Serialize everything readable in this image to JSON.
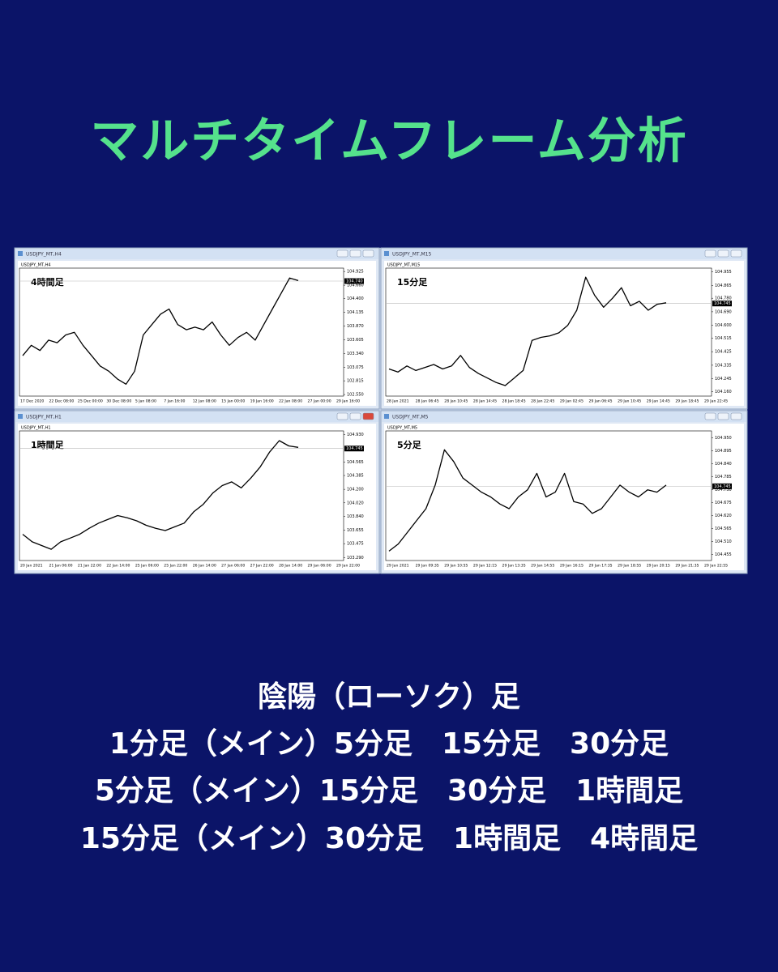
{
  "header": {
    "title": "マルチタイムフレーム分析"
  },
  "windows": [
    {
      "window_title": "USDJPY_MT,H4",
      "chart_data": {
        "type": "line",
        "symbol_label": "USDJPY_MT,H4",
        "annotation": "4時間足",
        "values": [
          103.3,
          103.5,
          103.4,
          103.6,
          103.55,
          103.7,
          103.75,
          103.5,
          103.3,
          103.1,
          103.0,
          102.85,
          102.75,
          103.0,
          103.7,
          103.9,
          104.1,
          104.2,
          103.9,
          103.8,
          103.85,
          103.8,
          103.95,
          103.7,
          103.5,
          103.65,
          103.75,
          103.6,
          103.9,
          104.2,
          104.5,
          104.8,
          104.75
        ],
        "ylim": [
          102.52,
          104.99
        ],
        "yticks": [
          104.925,
          {
            "value": 104.66,
            "label": "104.660"
          },
          {
            "value": 104.4,
            "label": "104.400"
          },
          104.135,
          {
            "value": 103.87,
            "label": "103.870"
          },
          103.605,
          {
            "value": 103.34,
            "label": "103.340"
          },
          103.075,
          102.815,
          {
            "value": 102.55,
            "label": "102.550"
          }
        ],
        "current_price": {
          "value": 104.74,
          "label": "104.740"
        },
        "x_labels": [
          "17 Dec 2020",
          "22 Dec 08:00",
          "25 Dec 00:00",
          "30 Dec 08:00",
          "5 Jan 08:00",
          "7 Jan 16:00",
          "12 Jan 08:00",
          "15 Jan 00:00",
          "19 Jan 16:00",
          "22 Jan 08:00",
          "27 Jan 00:00",
          "29 Jan 16:00"
        ]
      }
    },
    {
      "window_title": "USDJPY_MT,M15",
      "chart_data": {
        "type": "line",
        "symbol_label": "USDJPY_MT,M15",
        "annotation": "15分足",
        "values": [
          104.31,
          104.29,
          104.33,
          104.3,
          104.32,
          104.34,
          104.31,
          104.33,
          104.4,
          104.32,
          104.28,
          104.25,
          104.22,
          104.2,
          104.25,
          104.3,
          104.5,
          104.52,
          104.53,
          104.55,
          104.6,
          104.7,
          104.92,
          104.8,
          104.72,
          104.78,
          104.85,
          104.73,
          104.76,
          104.7,
          104.74,
          104.75
        ],
        "ylim": [
          104.13,
          104.98
        ],
        "yticks": [
          104.955,
          104.865,
          {
            "value": 104.78,
            "label": "104.780"
          },
          {
            "value": 104.69,
            "label": "104.690"
          },
          {
            "value": 104.6,
            "label": "104.600"
          },
          104.515,
          104.425,
          104.335,
          104.245,
          {
            "value": 104.16,
            "label": "104.160"
          }
        ],
        "current_price": 104.745,
        "x_labels": [
          "28 Jan 2021",
          "28 Jan 06:45",
          "28 Jan 10:45",
          "28 Jan 14:45",
          "28 Jan 18:45",
          "28 Jan 22:45",
          "29 Jan 02:45",
          "29 Jan 06:45",
          "29 Jan 10:45",
          "29 Jan 14:45",
          "29 Jan 18:45",
          "29 Jan 22:45"
        ]
      }
    },
    {
      "window_title": "USDJPY_MT,H1",
      "chart_data": {
        "type": "line",
        "symbol_label": "USDJPY_MT,H1",
        "annotation": "1時間足",
        "values": [
          103.6,
          103.5,
          103.45,
          103.4,
          103.5,
          103.55,
          103.6,
          103.68,
          103.75,
          103.8,
          103.85,
          103.82,
          103.78,
          103.72,
          103.68,
          103.65,
          103.7,
          103.75,
          103.9,
          104.0,
          104.15,
          104.25,
          104.3,
          104.22,
          104.35,
          104.5,
          104.7,
          104.85,
          104.78,
          104.76
        ],
        "ylim": [
          103.25,
          104.98
        ],
        "yticks": [
          {
            "value": 104.93,
            "label": "104.930"
          },
          104.565,
          104.385,
          {
            "value": 104.2,
            "label": "104.200"
          },
          {
            "value": 104.02,
            "label": "104.020"
          },
          {
            "value": 103.84,
            "label": "103.840"
          },
          103.655,
          103.475,
          {
            "value": 103.29,
            "label": "103.290"
          }
        ],
        "current_price": 104.745,
        "x_labels": [
          "20 Jan 2021",
          "21 Jan 06:00",
          "21 Jan 22:00",
          "22 Jan 14:00",
          "25 Jan 06:00",
          "25 Jan 22:00",
          "26 Jan 14:00",
          "27 Jan 06:00",
          "27 Jan 22:00",
          "28 Jan 14:00",
          "29 Jan 06:00",
          "29 Jan 22:00"
        ]
      }
    },
    {
      "window_title": "USDJPY_MT,M5",
      "chart_data": {
        "type": "line",
        "symbol_label": "USDJPY_MT,M5",
        "annotation": "5分足",
        "values": [
          104.47,
          104.5,
          104.55,
          104.6,
          104.65,
          104.75,
          104.9,
          104.85,
          104.78,
          104.75,
          104.72,
          104.7,
          104.67,
          104.65,
          104.7,
          104.73,
          104.8,
          104.7,
          104.72,
          104.8,
          104.68,
          104.67,
          104.63,
          104.65,
          104.7,
          104.75,
          104.72,
          104.7,
          104.73,
          104.72,
          104.75
        ],
        "ylim": [
          104.43,
          104.98
        ],
        "yticks": [
          {
            "value": 104.95,
            "label": "104.950"
          },
          104.895,
          {
            "value": 104.84,
            "label": "104.840"
          },
          104.785,
          {
            "value": 104.73,
            "label": "104.730"
          },
          104.675,
          {
            "value": 104.62,
            "label": "104.620"
          },
          104.565,
          {
            "value": 104.51,
            "label": "104.510"
          },
          104.455
        ],
        "current_price": 104.745,
        "x_labels": [
          "29 Jan 2021",
          "29 Jan 09:35",
          "29 Jan 10:55",
          "29 Jan 12:15",
          "29 Jan 13:35",
          "29 Jan 14:55",
          "29 Jan 16:15",
          "29 Jan 17:35",
          "29 Jan 18:55",
          "29 Jan 20:15",
          "29 Jan 21:35",
          "29 Jan 22:55"
        ]
      }
    }
  ],
  "text_lines": [
    "陰陽（ローソク）足",
    "1分足（メイン）5分足　15分足　30分足",
    "5分足（メイン）15分足　30分足　1時間足",
    "15分足（メイン）30分足　1時間足　4時間足"
  ]
}
